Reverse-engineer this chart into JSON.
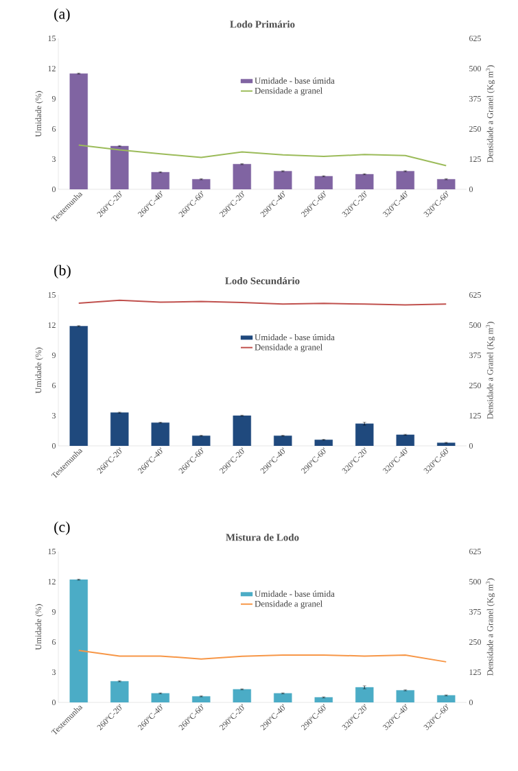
{
  "chart_data": [
    {
      "type": "bar",
      "title": "Lodo Primário",
      "annotations": [
        "(a)"
      ],
      "ylabel": "Umidade (%)",
      "y2label": "Densidade a Granel (Kg m$^{3}$)",
      "categories": [
        "Testemunha",
        "260ºC-20'",
        "260ºC-40'",
        "260ºC-60'",
        "290ºC-20'",
        "290ºC-40'",
        "290ºC-60'",
        "320ºC-20'",
        "320ºC-40'",
        "320ºC-60'"
      ],
      "series": [
        {
          "name": "Umidade - base úmida",
          "color": "#8064a2",
          "values": [
            11.5,
            4.3,
            1.7,
            1.0,
            2.5,
            1.8,
            1.3,
            1.5,
            1.8,
            1.0
          ],
          "errors": [
            0.05,
            0.05,
            0.05,
            0.05,
            0.05,
            0.05,
            0.05,
            0.05,
            0.05,
            0.05
          ]
        },
        {
          "name": "Densidade a granel",
          "type": "line",
          "axis": "y2",
          "color": "#9bbb59",
          "values": [
            183,
            163,
            147,
            132,
            155,
            143,
            136,
            144,
            140,
            98
          ]
        }
      ],
      "ylim": [
        0,
        15
      ],
      "yticks": [
        0,
        3,
        6,
        9,
        12,
        15
      ],
      "y2lim": [
        0,
        625
      ],
      "y2ticks": [
        0,
        125,
        250,
        375,
        500,
        625
      ],
      "legend": "top"
    },
    {
      "type": "bar",
      "title": "Lodo Secundário",
      "annotations": [
        "(b)"
      ],
      "ylabel": "Umidade (%)",
      "y2label": "Densidade a Granel (Kg m$^{3}$)",
      "categories": [
        "Testemunha",
        "260ºC-20'",
        "260ºC-40'",
        "260ºC-60'",
        "290ºC-20'",
        "290ºC-40'",
        "290ºC-60'",
        "320ºC-20'",
        "320ºC-40'",
        "320ºC-60'"
      ],
      "series": [
        {
          "name": "Umidade - base úmida",
          "color": "#1f497d",
          "values": [
            11.9,
            3.3,
            2.3,
            1.0,
            3.0,
            1.0,
            0.6,
            2.2,
            1.1,
            0.3
          ],
          "errors": [
            0.05,
            0.05,
            0.05,
            0.05,
            0.05,
            0.05,
            0.05,
            0.15,
            0.05,
            0.05
          ]
        },
        {
          "name": "Densidade a granel",
          "type": "line",
          "axis": "y2",
          "color": "#c0504d",
          "values": [
            591,
            603,
            595,
            598,
            594,
            587,
            590,
            587,
            584,
            587
          ]
        }
      ],
      "ylim": [
        0,
        15
      ],
      "yticks": [
        0,
        3,
        6,
        9,
        12,
        15
      ],
      "y2lim": [
        0,
        625
      ],
      "y2ticks": [
        0,
        125,
        250,
        375,
        500,
        625
      ],
      "legend": "top"
    },
    {
      "type": "bar",
      "title": "Mistura de Lodo",
      "annotations": [
        "(c)"
      ],
      "ylabel": "Umidade (%)",
      "y2label": "Densidade a Granel (Kg m$^{3}$)",
      "categories": [
        "Testemunha",
        "260ºC-20'",
        "260ºC-40'",
        "260ºC-60'",
        "290ºC-20'",
        "290ºC-40'",
        "290ºC-60'",
        "320ºC-20'",
        "320ºC-40'",
        "320ºC-60'"
      ],
      "series": [
        {
          "name": "Umidade - base úmida",
          "color": "#4bacc6",
          "values": [
            12.2,
            2.1,
            0.9,
            0.6,
            1.3,
            0.9,
            0.5,
            1.5,
            1.2,
            0.7
          ],
          "errors": [
            0.05,
            0.05,
            0.05,
            0.05,
            0.05,
            0.05,
            0.05,
            0.15,
            0.05,
            0.05
          ]
        },
        {
          "name": "Densidade a granel",
          "type": "line",
          "axis": "y2",
          "color": "#f79646",
          "values": [
            215,
            192,
            192,
            180,
            191,
            196,
            196,
            192,
            196,
            168
          ]
        }
      ],
      "ylim": [
        0,
        15
      ],
      "yticks": [
        0,
        3,
        6,
        9,
        12,
        15
      ],
      "y2lim": [
        0,
        625
      ],
      "y2ticks": [
        0,
        125,
        250,
        375,
        500,
        625
      ],
      "legend": "top"
    }
  ]
}
